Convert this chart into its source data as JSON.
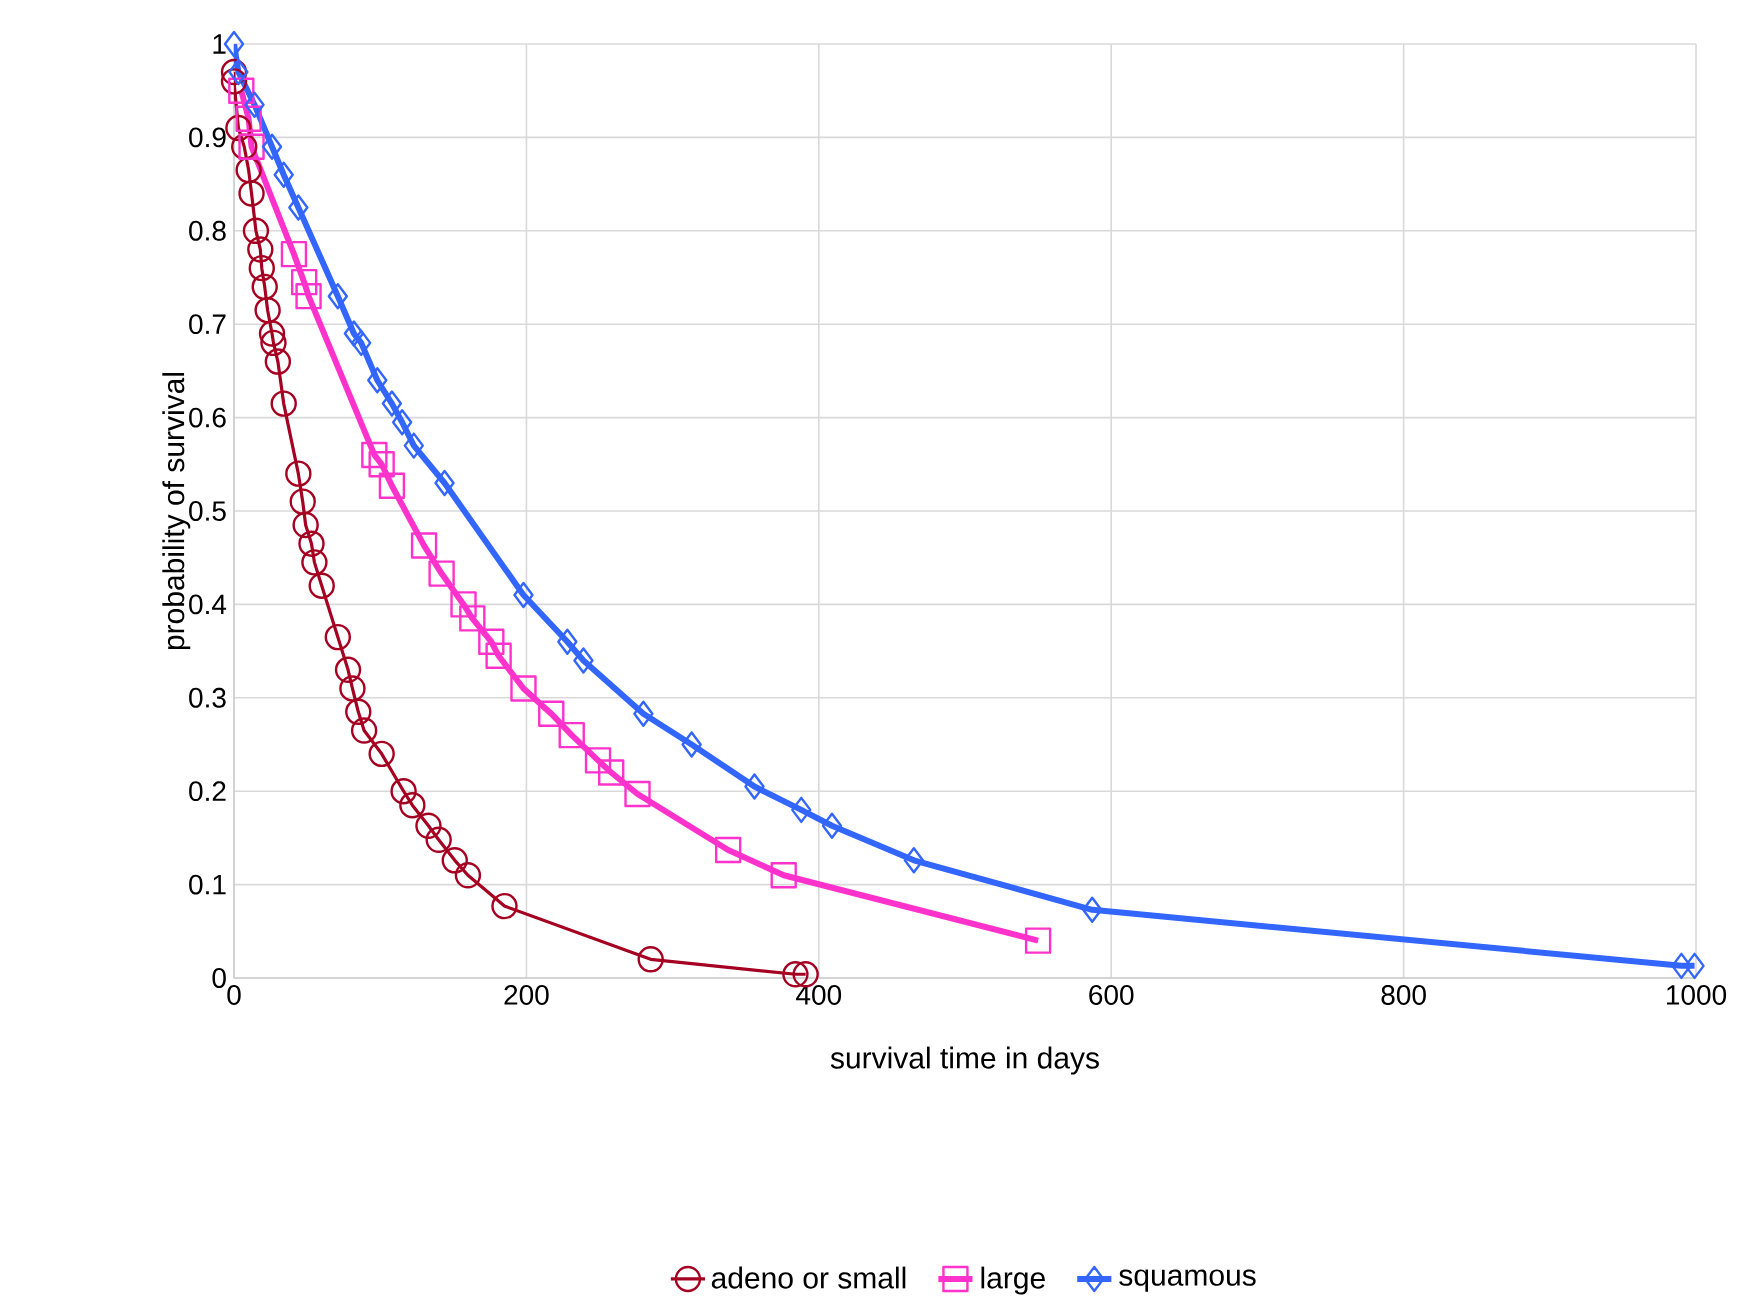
{
  "chart_data": {
    "type": "line",
    "xlabel": "survival time in days",
    "ylabel": "probability of survival",
    "xlim": [
      0,
      1000
    ],
    "xticks": [
      0,
      200,
      400,
      600,
      800,
      1000
    ],
    "ylim": [
      0,
      1
    ],
    "yticks": [
      0,
      0.1,
      0.2,
      0.3,
      0.4,
      0.5,
      0.6,
      0.7,
      0.8,
      0.9,
      1
    ],
    "grid": true,
    "legend": "bottom",
    "series": [
      {
        "name": "adeno or small",
        "color": "#a50021",
        "marker": "circle",
        "x": [
          0,
          0,
          3,
          7,
          10,
          12,
          15,
          18,
          19,
          21,
          23,
          26,
          27,
          30,
          34,
          44,
          47,
          49,
          53,
          55,
          60,
          71,
          78,
          81,
          85,
          89,
          101,
          116,
          122,
          133,
          140,
          151,
          160,
          185,
          285,
          384,
          391
        ],
        "values": [
          0.97,
          0.96,
          0.91,
          0.89,
          0.865,
          0.84,
          0.8,
          0.78,
          0.76,
          0.74,
          0.715,
          0.69,
          0.68,
          0.66,
          0.615,
          0.54,
          0.51,
          0.485,
          0.465,
          0.445,
          0.42,
          0.365,
          0.33,
          0.31,
          0.285,
          0.265,
          0.24,
          0.2,
          0.185,
          0.163,
          0.148,
          0.126,
          0.11,
          0.077,
          0.02,
          0.004,
          0.004
        ]
      },
      {
        "name": "large",
        "color": "#ff33cc",
        "marker": "square",
        "x": [
          5,
          10,
          12,
          41,
          48,
          51,
          96,
          101,
          108,
          130,
          142,
          157,
          163,
          176,
          181,
          198,
          217,
          231,
          249,
          258,
          276,
          338,
          376,
          550
        ],
        "values": [
          0.95,
          0.92,
          0.89,
          0.775,
          0.745,
          0.73,
          0.56,
          0.55,
          0.527,
          0.463,
          0.433,
          0.4,
          0.385,
          0.36,
          0.345,
          0.31,
          0.283,
          0.26,
          0.233,
          0.22,
          0.197,
          0.137,
          0.11,
          0.04
        ]
      },
      {
        "name": "squamous",
        "color": "#3366ff",
        "marker": "diamond",
        "x": [
          0,
          3,
          14,
          26,
          34,
          44,
          71,
          82,
          87,
          98,
          108,
          115,
          123,
          144,
          198,
          228,
          239,
          280,
          313,
          356,
          388,
          409,
          465,
          587,
          990,
          999
        ],
        "values": [
          1.0,
          0.97,
          0.935,
          0.89,
          0.86,
          0.825,
          0.73,
          0.69,
          0.68,
          0.64,
          0.615,
          0.595,
          0.57,
          0.53,
          0.41,
          0.36,
          0.34,
          0.283,
          0.25,
          0.205,
          0.18,
          0.163,
          0.126,
          0.073,
          0.013,
          0.013
        ]
      }
    ]
  }
}
